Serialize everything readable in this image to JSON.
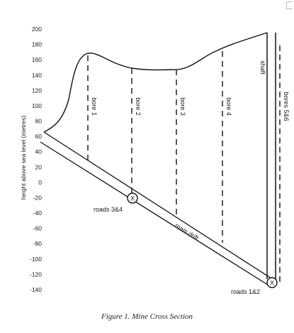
{
  "figure": {
    "caption": "Figure 1. Mine Cross Section",
    "y_axis_label": "height above sea level (metres)",
    "y_ticks": [
      "200",
      "180",
      "160",
      "140",
      "120",
      "100",
      "80",
      "60",
      "40",
      "20",
      "0",
      "-20",
      "-40",
      "-60",
      "-80",
      "-100",
      "-120",
      "-140"
    ],
    "bores": [
      {
        "label": "bore 1",
        "surface": 164,
        "bottom": 30
      },
      {
        "label": "bore 2",
        "surface": 137,
        "bottom": -20
      },
      {
        "label": "bore 3",
        "surface": 130,
        "bottom": -45
      },
      {
        "label": "bore 4",
        "surface": 153,
        "bottom": -75
      }
    ],
    "bores_56": {
      "label": "bores 5&6",
      "top": 185,
      "bottom": -125
    },
    "shaft": {
      "label": "shaft",
      "top": 188,
      "bottom": -130
    },
    "main_drift": {
      "label": "main drift"
    },
    "roads_34": {
      "label": "roads 3&4",
      "symbol": "X",
      "height": -23
    },
    "roads_12": {
      "label": "roads 1&2",
      "symbol": "X",
      "height": -132
    }
  }
}
